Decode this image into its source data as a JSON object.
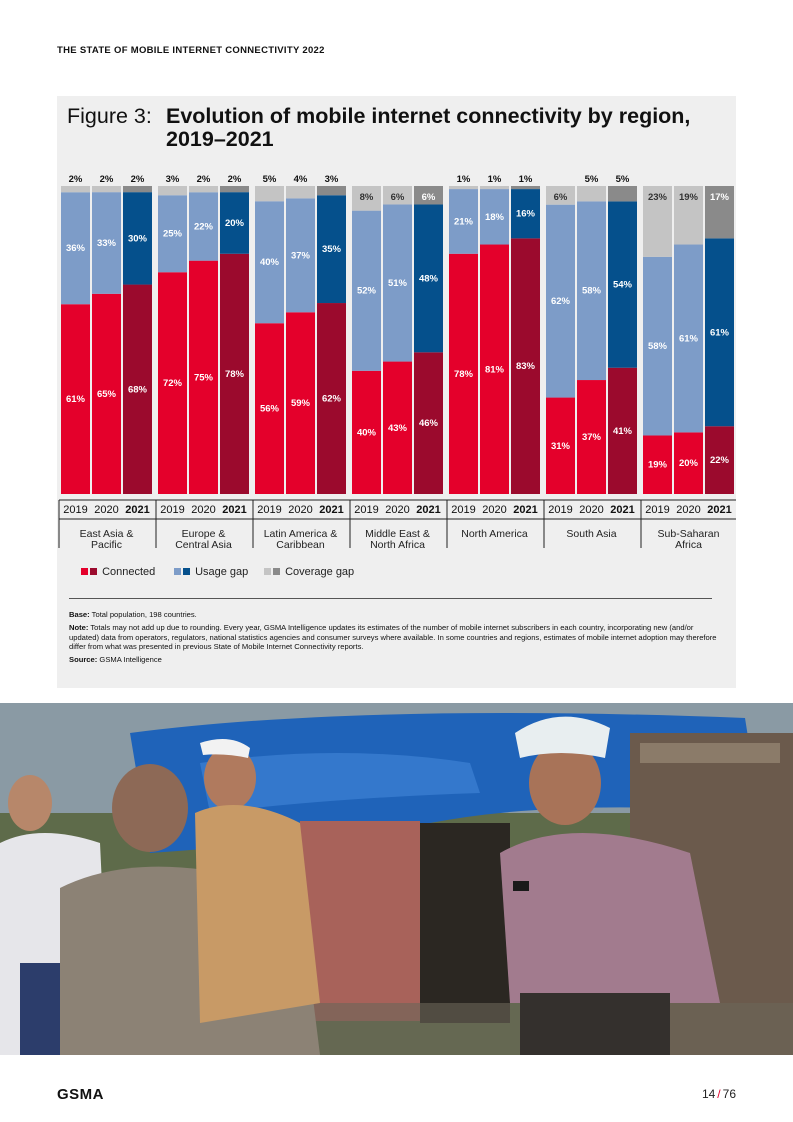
{
  "header": {
    "running_title": "THE STATE OF MOBILE INTERNET CONNECTIVITY 2022"
  },
  "figure": {
    "label": "Figure 3:",
    "title": "Evolution of mobile internet connectivity by region, 2019–2021"
  },
  "legend": [
    {
      "name": "Connected",
      "colors": [
        "#e4002b",
        "#9b0a2d"
      ]
    },
    {
      "name": "Usage gap",
      "colors": [
        "#7d9cc8",
        "#05508c"
      ]
    },
    {
      "name": "Coverage gap",
      "colors": [
        "#c4c4c4",
        "#8a8a8a"
      ]
    }
  ],
  "colors": {
    "connected_prior": "#e4002b",
    "connected_2021": "#9b0a2d",
    "usage_prior": "#7d9cc8",
    "usage_2021": "#05508c",
    "coverage_prior": "#c4c4c4",
    "coverage_2021": "#8a8a8a"
  },
  "chart_data": {
    "type": "bar",
    "stacked": true,
    "ylim": [
      0,
      100
    ],
    "years": [
      "2019",
      "2020",
      "2021"
    ],
    "groups": [
      {
        "region": [
          "East Asia &",
          "Pacific"
        ],
        "connected": [
          61,
          65,
          68
        ],
        "usage": [
          36,
          33,
          30
        ],
        "coverage": [
          2,
          2,
          2
        ]
      },
      {
        "region": [
          "Europe &",
          "Central Asia"
        ],
        "connected": [
          72,
          75,
          78
        ],
        "usage": [
          25,
          22,
          20
        ],
        "coverage": [
          3,
          2,
          2
        ]
      },
      {
        "region": [
          "Latin America &",
          "Caribbean"
        ],
        "connected": [
          56,
          59,
          62
        ],
        "usage": [
          40,
          37,
          35
        ],
        "coverage": [
          5,
          4,
          3
        ]
      },
      {
        "region": [
          "Middle East &",
          "North Africa"
        ],
        "connected": [
          40,
          43,
          46
        ],
        "usage": [
          52,
          51,
          48
        ],
        "coverage": [
          8,
          6,
          6
        ]
      },
      {
        "region": [
          "North America"
        ],
        "connected": [
          78,
          81,
          83
        ],
        "usage": [
          21,
          18,
          16
        ],
        "coverage": [
          1,
          1,
          1
        ]
      },
      {
        "region": [
          "South Asia"
        ],
        "connected": [
          31,
          37,
          41
        ],
        "usage": [
          62,
          58,
          54
        ],
        "coverage": [
          6,
          5,
          5
        ]
      },
      {
        "region": [
          "Sub-Saharan",
          "Africa"
        ],
        "connected": [
          19,
          20,
          22
        ],
        "usage": [
          58,
          61,
          61
        ],
        "coverage": [
          23,
          19,
          17
        ]
      }
    ]
  },
  "notes": {
    "base_label": "Base:",
    "base_text": "Total population, 198 countries.",
    "note_label": "Note:",
    "note_text": "Totals may not add up due to rounding. Every year, GSMA Intelligence updates its estimates of the number of mobile internet subscribers in each country, incorporating new (and/or updated) data from operators, regulators, national statistics agencies and consumer surveys where available. In some countries and regions, estimates of mobile internet adoption may therefore differ from what was presented in previous State of Mobile Internet Connectivity reports.",
    "source_label": "Source:",
    "source_text": "GSMA Intelligence"
  },
  "footer": {
    "logo": "GSMA",
    "page": "14",
    "total": "76"
  }
}
